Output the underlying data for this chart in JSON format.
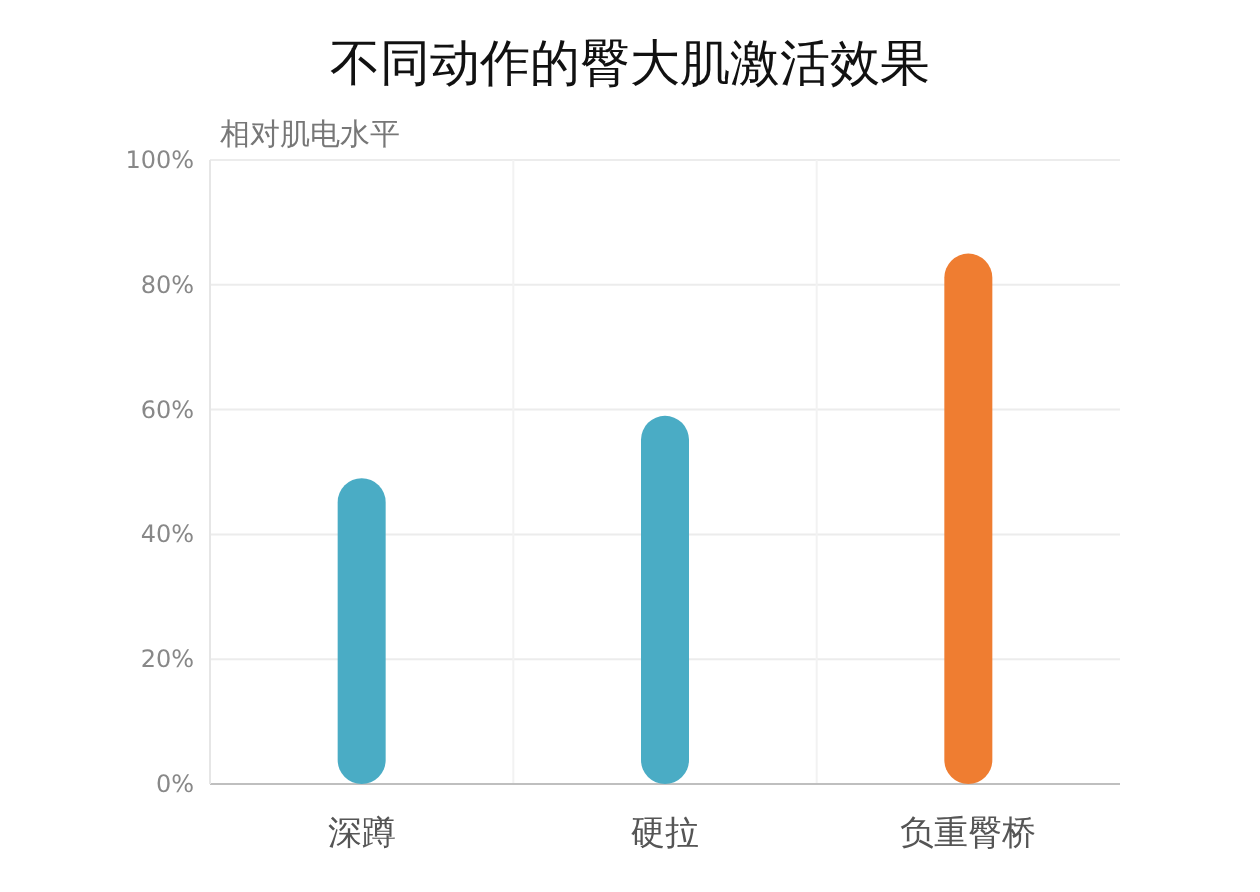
{
  "chart_data": {
    "type": "bar",
    "title": "不同动作的臀大肌激活效果",
    "ylabel": "相对肌电水平",
    "categories": [
      "深蹲",
      "硬拉",
      "负重臀桥"
    ],
    "values": [
      49,
      59,
      85
    ],
    "colors": [
      "#4aacc5",
      "#4aacc5",
      "#ef7d31"
    ],
    "ylim": [
      0,
      100
    ],
    "yticks": [
      {
        "value": 0,
        "label": "0%"
      },
      {
        "value": 20,
        "label": "20%"
      },
      {
        "value": 40,
        "label": "40%"
      },
      {
        "value": 60,
        "label": "60%"
      },
      {
        "value": 80,
        "label": "80%"
      },
      {
        "value": 100,
        "label": "100%"
      }
    ],
    "grid": true
  }
}
